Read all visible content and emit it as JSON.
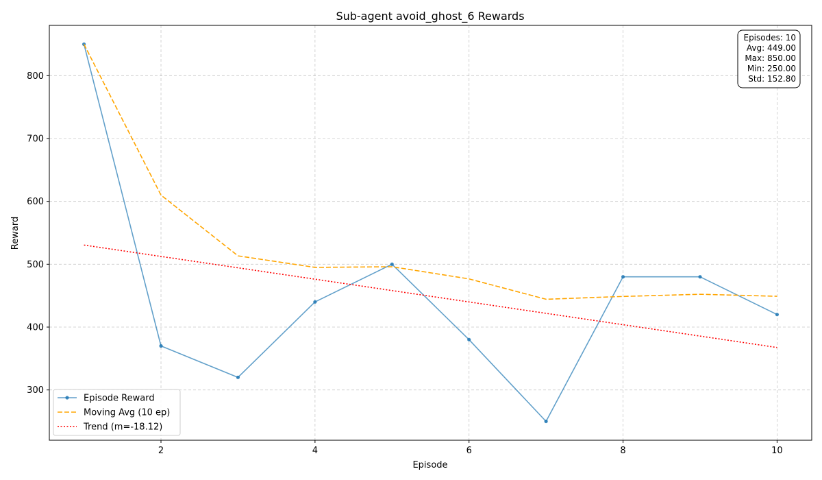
{
  "chart_data": {
    "type": "line",
    "title": "Sub-agent avoid_ghost_6 Rewards",
    "xlabel": "Episode",
    "ylabel": "Reward",
    "xlim": [
      0.55,
      10.45
    ],
    "ylim": [
      220,
      880
    ],
    "xticks": [
      2,
      4,
      6,
      8,
      10
    ],
    "yticks": [
      300,
      400,
      500,
      600,
      700,
      800
    ],
    "grid": true,
    "legend_position": "bottom-left",
    "x": [
      1,
      2,
      3,
      4,
      5,
      6,
      7,
      8,
      9,
      10
    ],
    "series": [
      {
        "name": "Episode Reward",
        "color": "#1f77b4",
        "style": "solid-markers",
        "values": [
          850,
          370,
          320,
          440,
          500,
          380,
          250,
          480,
          480,
          420
        ]
      },
      {
        "name": "Moving Avg (10 ep)",
        "color": "#ffa500",
        "style": "dashed",
        "values": [
          850,
          610,
          513.33,
          495,
          496,
          476.67,
          444.29,
          448.75,
          452.22,
          449
        ]
      },
      {
        "name": "Trend (m=-18.12)",
        "color": "#ff0000",
        "style": "dotted",
        "values": [
          530.5,
          512.4,
          494.3,
          476.2,
          458.1,
          440.0,
          421.9,
          403.8,
          385.7,
          367.5
        ]
      }
    ],
    "stats_box": {
      "position": "top-right",
      "lines": [
        "Episodes: 10",
        "Avg: 449.00",
        "Max: 850.00",
        "Min: 250.00",
        "Std: 152.80"
      ]
    }
  }
}
